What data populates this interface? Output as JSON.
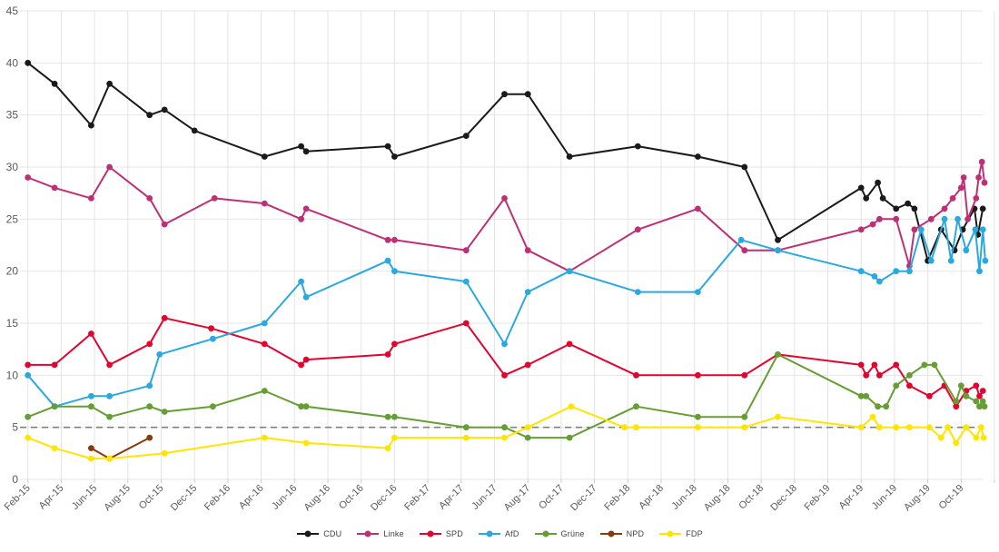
{
  "chart_data": {
    "type": "line",
    "title": "",
    "xlabel": "",
    "ylabel": "",
    "x_unit": "months since Feb-2015 (fractional = poll date within period)",
    "ylim": [
      0,
      45
    ],
    "y_ticks": [
      0,
      5,
      10,
      15,
      20,
      25,
      30,
      35,
      40,
      45
    ],
    "grid": true,
    "threshold_line": {
      "y": 5,
      "style": "dashed",
      "color": "#7f7f7f",
      "meaning": "5%-Hürde"
    },
    "x_tick_step_months": 2,
    "x_tick_labels": [
      "Feb-15",
      "Apr-15",
      "Jun-15",
      "Aug-15",
      "Oct-15",
      "Dec-15",
      "Feb-16",
      "Apr-16",
      "Jun-16",
      "Aug-16",
      "Oct-16",
      "Dec-16",
      "Feb-17",
      "Apr-17",
      "Jun-17",
      "Aug-17",
      "Oct-17",
      "Dec-17",
      "Feb-18",
      "Apr-18",
      "Jun-18",
      "Aug-18",
      "Oct-18",
      "Dec-18",
      "Feb-19",
      "Apr-19",
      "Jun-19",
      "Aug-19",
      "Oct-19"
    ],
    "legend_position": "bottom-center",
    "series": [
      {
        "name": "CDU",
        "color": "#1a1a1a",
        "points": [
          [
            0,
            40
          ],
          [
            1.6,
            38
          ],
          [
            3.8,
            34
          ],
          [
            4.9,
            38
          ],
          [
            7.3,
            35
          ],
          [
            8.2,
            35.5
          ],
          [
            10,
            33.5
          ],
          [
            14.2,
            31
          ],
          [
            16.4,
            32
          ],
          [
            16.7,
            31.5
          ],
          [
            21.6,
            32
          ],
          [
            22,
            31
          ],
          [
            26.3,
            33
          ],
          [
            28.6,
            37
          ],
          [
            30,
            37
          ],
          [
            32.5,
            31
          ],
          [
            36.6,
            32
          ],
          [
            40.2,
            31
          ],
          [
            43,
            30
          ],
          [
            45,
            23
          ],
          [
            50,
            28
          ],
          [
            50.3,
            27
          ],
          [
            51,
            28.5
          ],
          [
            51.3,
            27
          ],
          [
            52.1,
            26
          ],
          [
            52.8,
            26.5
          ],
          [
            53.2,
            26
          ],
          [
            54,
            21
          ],
          [
            54.8,
            24
          ],
          [
            55.6,
            22
          ],
          [
            56.1,
            24
          ],
          [
            56.8,
            26
          ],
          [
            57,
            23.5
          ],
          [
            57.3,
            26
          ]
        ]
      },
      {
        "name": "Linke",
        "color": "#be3075",
        "points": [
          [
            0,
            29
          ],
          [
            1.6,
            28
          ],
          [
            3.8,
            27
          ],
          [
            4.9,
            30
          ],
          [
            7.3,
            27
          ],
          [
            8.2,
            24.5
          ],
          [
            11.2,
            27
          ],
          [
            14.2,
            26.5
          ],
          [
            16.4,
            25
          ],
          [
            16.7,
            26
          ],
          [
            21.6,
            23
          ],
          [
            22,
            23
          ],
          [
            26.3,
            22
          ],
          [
            28.6,
            27
          ],
          [
            30,
            22
          ],
          [
            32.5,
            20
          ],
          [
            36.6,
            24
          ],
          [
            40.2,
            26
          ],
          [
            43,
            22
          ],
          [
            45,
            22
          ],
          [
            50,
            24
          ],
          [
            50.7,
            24.5
          ],
          [
            51.1,
            25
          ],
          [
            52.1,
            25
          ],
          [
            52.9,
            20.5
          ],
          [
            53.2,
            24
          ],
          [
            54.2,
            25
          ],
          [
            55,
            26
          ],
          [
            55.5,
            27
          ],
          [
            56,
            28
          ],
          [
            56.15,
            29
          ],
          [
            56.4,
            25
          ],
          [
            56.9,
            27
          ],
          [
            57.05,
            29
          ],
          [
            57.25,
            30.5
          ],
          [
            57.4,
            28.5
          ]
        ]
      },
      {
        "name": "SPD",
        "color": "#e4032e",
        "points": [
          [
            0,
            11
          ],
          [
            1.6,
            11
          ],
          [
            3.8,
            14
          ],
          [
            4.9,
            11
          ],
          [
            7.3,
            13
          ],
          [
            8.2,
            15.5
          ],
          [
            11,
            14.5
          ],
          [
            14.2,
            13
          ],
          [
            16.4,
            11
          ],
          [
            16.7,
            11.5
          ],
          [
            21.6,
            12
          ],
          [
            22,
            13
          ],
          [
            26.3,
            15
          ],
          [
            28.6,
            10
          ],
          [
            30,
            11
          ],
          [
            32.5,
            13
          ],
          [
            36.5,
            10
          ],
          [
            40.2,
            10
          ],
          [
            43,
            10
          ],
          [
            45,
            12
          ],
          [
            50,
            11
          ],
          [
            50.3,
            10
          ],
          [
            50.8,
            11
          ],
          [
            51.1,
            10
          ],
          [
            52.1,
            11
          ],
          [
            52.9,
            9
          ],
          [
            54.1,
            8
          ],
          [
            55,
            9
          ],
          [
            55.7,
            7
          ],
          [
            56.3,
            8.5
          ],
          [
            56.9,
            9
          ],
          [
            57.1,
            8
          ],
          [
            57.3,
            8.5
          ]
        ]
      },
      {
        "name": "AfD",
        "color": "#29a9e0",
        "points": [
          [
            0,
            10
          ],
          [
            1.6,
            7
          ],
          [
            3.8,
            8
          ],
          [
            4.9,
            8
          ],
          [
            7.3,
            9
          ],
          [
            7.9,
            12
          ],
          [
            11.1,
            13.5
          ],
          [
            14.2,
            15
          ],
          [
            16.4,
            19
          ],
          [
            16.7,
            17.5
          ],
          [
            21.6,
            21
          ],
          [
            22,
            20
          ],
          [
            26.3,
            19
          ],
          [
            28.6,
            13
          ],
          [
            30,
            18
          ],
          [
            32.5,
            20
          ],
          [
            36.6,
            18
          ],
          [
            40.2,
            18
          ],
          [
            42.8,
            23
          ],
          [
            45,
            22
          ],
          [
            50,
            20
          ],
          [
            50.8,
            19.5
          ],
          [
            51.1,
            19
          ],
          [
            52.1,
            20
          ],
          [
            52.9,
            20
          ],
          [
            53.6,
            24
          ],
          [
            54.2,
            21
          ],
          [
            55,
            25
          ],
          [
            55.4,
            21
          ],
          [
            55.8,
            25
          ],
          [
            56.3,
            22
          ],
          [
            56.85,
            24
          ],
          [
            57.1,
            20
          ],
          [
            57.3,
            24
          ],
          [
            57.45,
            21
          ]
        ]
      },
      {
        "name": "Grüne",
        "color": "#669d34",
        "points": [
          [
            0,
            6
          ],
          [
            1.6,
            7
          ],
          [
            3.8,
            7
          ],
          [
            4.9,
            6
          ],
          [
            7.3,
            7
          ],
          [
            8.2,
            6.5
          ],
          [
            11.1,
            7
          ],
          [
            14.2,
            8.5
          ],
          [
            16.4,
            7
          ],
          [
            16.7,
            7
          ],
          [
            21.6,
            6
          ],
          [
            22,
            6
          ],
          [
            26.3,
            5
          ],
          [
            28.6,
            5
          ],
          [
            30,
            4
          ],
          [
            32.5,
            4
          ],
          [
            36.5,
            7
          ],
          [
            40.2,
            6
          ],
          [
            43,
            6
          ],
          [
            45,
            12
          ],
          [
            50,
            8
          ],
          [
            50.3,
            8
          ],
          [
            51,
            7
          ],
          [
            51.5,
            7
          ],
          [
            52.1,
            9
          ],
          [
            52.9,
            10
          ],
          [
            53.8,
            11
          ],
          [
            54.4,
            11
          ],
          [
            55.7,
            7.5
          ],
          [
            56,
            9
          ],
          [
            56.3,
            8
          ],
          [
            56.9,
            7.5
          ],
          [
            57.1,
            7
          ],
          [
            57.3,
            7.5
          ],
          [
            57.4,
            7
          ]
        ]
      },
      {
        "name": "NPD",
        "color": "#843c0c",
        "points": [
          [
            3.8,
            3
          ],
          [
            4.9,
            2
          ],
          [
            7.3,
            4
          ]
        ]
      },
      {
        "name": "FDP",
        "color": "#ffe500",
        "points": [
          [
            0,
            4
          ],
          [
            1.6,
            3
          ],
          [
            3.8,
            2
          ],
          [
            4.9,
            2
          ],
          [
            8.2,
            2.5
          ],
          [
            14.2,
            4
          ],
          [
            16.7,
            3.5
          ],
          [
            21.6,
            3
          ],
          [
            22,
            4
          ],
          [
            26.3,
            4
          ],
          [
            28.6,
            4
          ],
          [
            30,
            5
          ],
          [
            32.6,
            7
          ],
          [
            35.8,
            5
          ],
          [
            36.5,
            5
          ],
          [
            40.2,
            5
          ],
          [
            43,
            5
          ],
          [
            45,
            6
          ],
          [
            50,
            5
          ],
          [
            50.7,
            6
          ],
          [
            51.1,
            5
          ],
          [
            52.1,
            5
          ],
          [
            52.9,
            5
          ],
          [
            54.1,
            5
          ],
          [
            54.8,
            4
          ],
          [
            55.2,
            5
          ],
          [
            55.7,
            3.5
          ],
          [
            56.3,
            5
          ],
          [
            56.9,
            4
          ],
          [
            57.2,
            5
          ],
          [
            57.35,
            4
          ]
        ]
      }
    ],
    "legend": [
      "CDU",
      "Linke",
      "SPD",
      "AfD",
      "Grüne",
      "NPD",
      "FDP"
    ],
    "style": {
      "grid_color": "#e4e4e4",
      "tick_color": "#c9c9c9",
      "label_color": "#595959",
      "background": "#ffffff",
      "line_width": 2,
      "dot_radius": 3.4
    }
  }
}
